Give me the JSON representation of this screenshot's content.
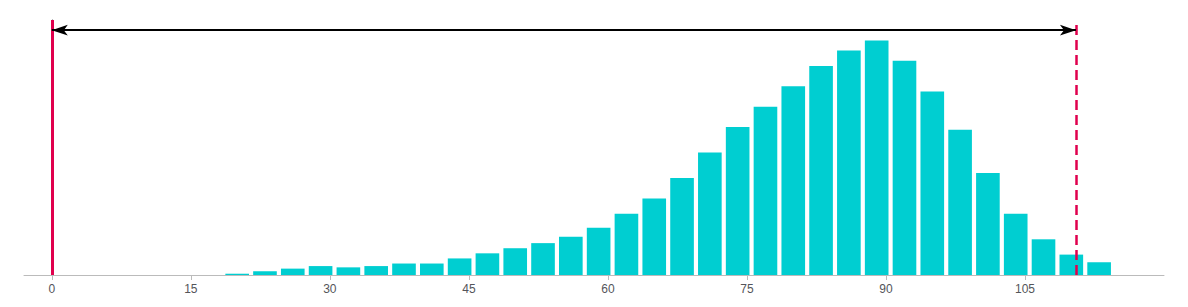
{
  "chart_data": {
    "type": "bar",
    "x": [
      20,
      23,
      26,
      29,
      32,
      35,
      38,
      41,
      44,
      47,
      50,
      53,
      56,
      59,
      62,
      65,
      68,
      71,
      74,
      77,
      80,
      83,
      86,
      89,
      92,
      95,
      98,
      101,
      104,
      107,
      110,
      113
    ],
    "values": [
      0.5,
      1.5,
      2.5,
      3.5,
      3.0,
      3.5,
      4.5,
      4.5,
      6.5,
      8.5,
      10.5,
      12.5,
      15.0,
      18.5,
      24.0,
      30.0,
      38.0,
      48.0,
      58.0,
      66.0,
      74.0,
      82.0,
      88.0,
      92.0,
      84.0,
      72.0,
      57.0,
      40.0,
      24.0,
      14.0,
      8.0,
      5.0
    ],
    "color": "#00CED1",
    "xlim": [
      -3,
      120
    ],
    "xticks": [
      0,
      15,
      30,
      45,
      60,
      75,
      90,
      105
    ],
    "ylim": [
      0,
      100
    ],
    "grid": false,
    "tick_labels": "x",
    "vlines": [
      {
        "x": 0,
        "color": "#e0004d",
        "line_style": "solid"
      },
      {
        "x": 110.5,
        "color": "#e0004d",
        "line_style": "dashed"
      }
    ],
    "arrow": {
      "from": 0,
      "to": 110.5,
      "y": 96,
      "color": "#000000"
    }
  }
}
